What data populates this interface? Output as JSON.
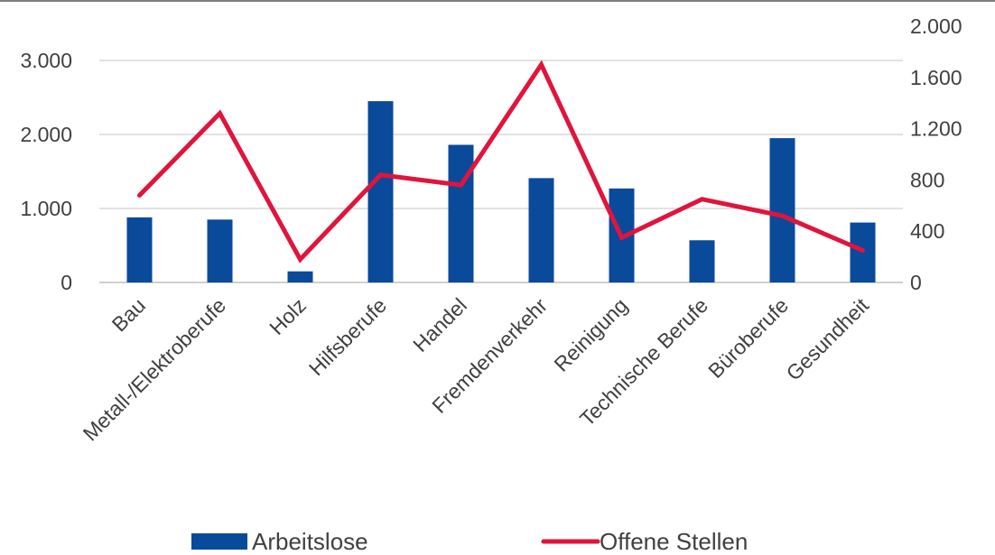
{
  "chart_data": {
    "type": "bar+line",
    "categories": [
      "Bau",
      "Metall-/Elektroberufe",
      "Holz",
      "Hilfsberufe",
      "Handel",
      "Fremdenverkehr",
      "Reinigung",
      "Technische Berufe",
      "Büroberufe",
      "Gesundheit"
    ],
    "series": [
      {
        "name": "Arbeitslose",
        "type": "bar",
        "axis": "left",
        "color": "#0a4a9b",
        "values": [
          880,
          850,
          150,
          2450,
          1860,
          1410,
          1270,
          570,
          1950,
          810
        ]
      },
      {
        "name": "Offene Stellen",
        "type": "line",
        "axis": "right",
        "color": "#e0143c",
        "values": [
          680,
          1320,
          180,
          840,
          760,
          1700,
          350,
          650,
          520,
          250
        ]
      }
    ],
    "y_left": {
      "min": 0,
      "max": 3000,
      "ticks": [
        0,
        1000,
        2000,
        3000
      ],
      "tick_labels": [
        "0",
        "1.000",
        "2.000",
        "3.000"
      ]
    },
    "y_right": {
      "min": 0,
      "max": 2000,
      "ticks": [
        0,
        400,
        800,
        1200,
        1600,
        2000
      ],
      "tick_labels": [
        "0",
        "400",
        "800",
        "1.200",
        "1.600",
        "2.000"
      ]
    },
    "grid": true,
    "legend": "bottom",
    "title": "",
    "xlabel": "",
    "ylabel": ""
  }
}
